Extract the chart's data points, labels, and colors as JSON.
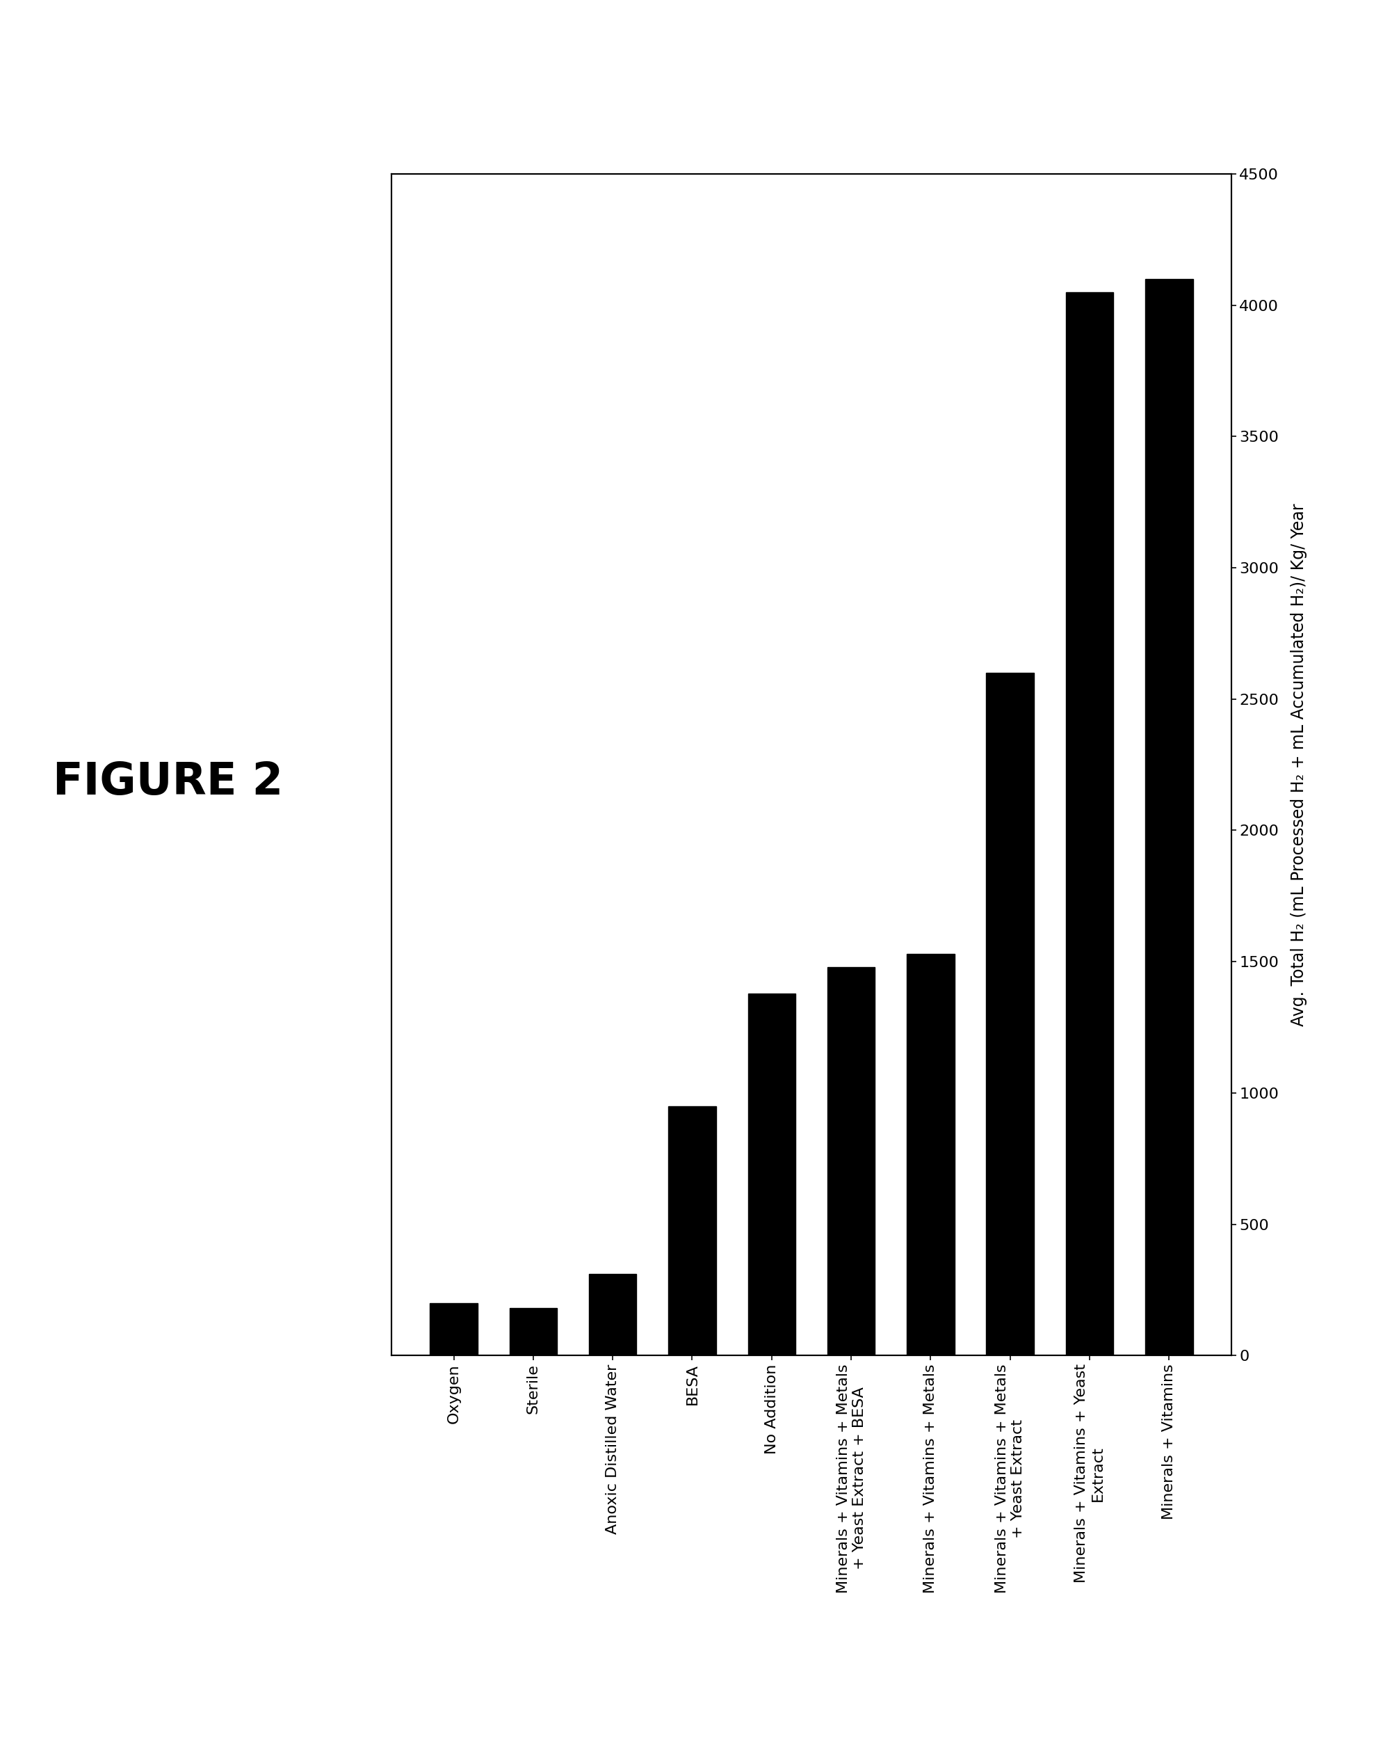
{
  "categories": [
    "Oxygen",
    "Sterile",
    "Anoxic Distilled Water",
    "BESA",
    "No Addition",
    "Minerals + Vitamins + Metals\n+ Yeast Extract + BESA",
    "Minerals + Vitamins + Metals",
    "Minerals + Vitamins + Metals\n+ Yeast Extract",
    "Minerals + Vitamins + Yeast\nExtract",
    "Minerals + Vitamins"
  ],
  "values": [
    200,
    180,
    310,
    950,
    1380,
    1480,
    1530,
    2600,
    4050,
    4100
  ],
  "bar_color": "#000000",
  "figure_label": "FIGURE 2",
  "ylabel": "Avg. Total H₂ (mL Processed H₂ + mL Accumulated H₂)/ Kg/ Year",
  "ylim": [
    0,
    4500
  ],
  "yticks": [
    0,
    500,
    1000,
    1500,
    2000,
    2500,
    3000,
    3500,
    4000,
    4500
  ],
  "background_color": "#ffffff",
  "figure_width": 20.12,
  "figure_height": 24.98
}
